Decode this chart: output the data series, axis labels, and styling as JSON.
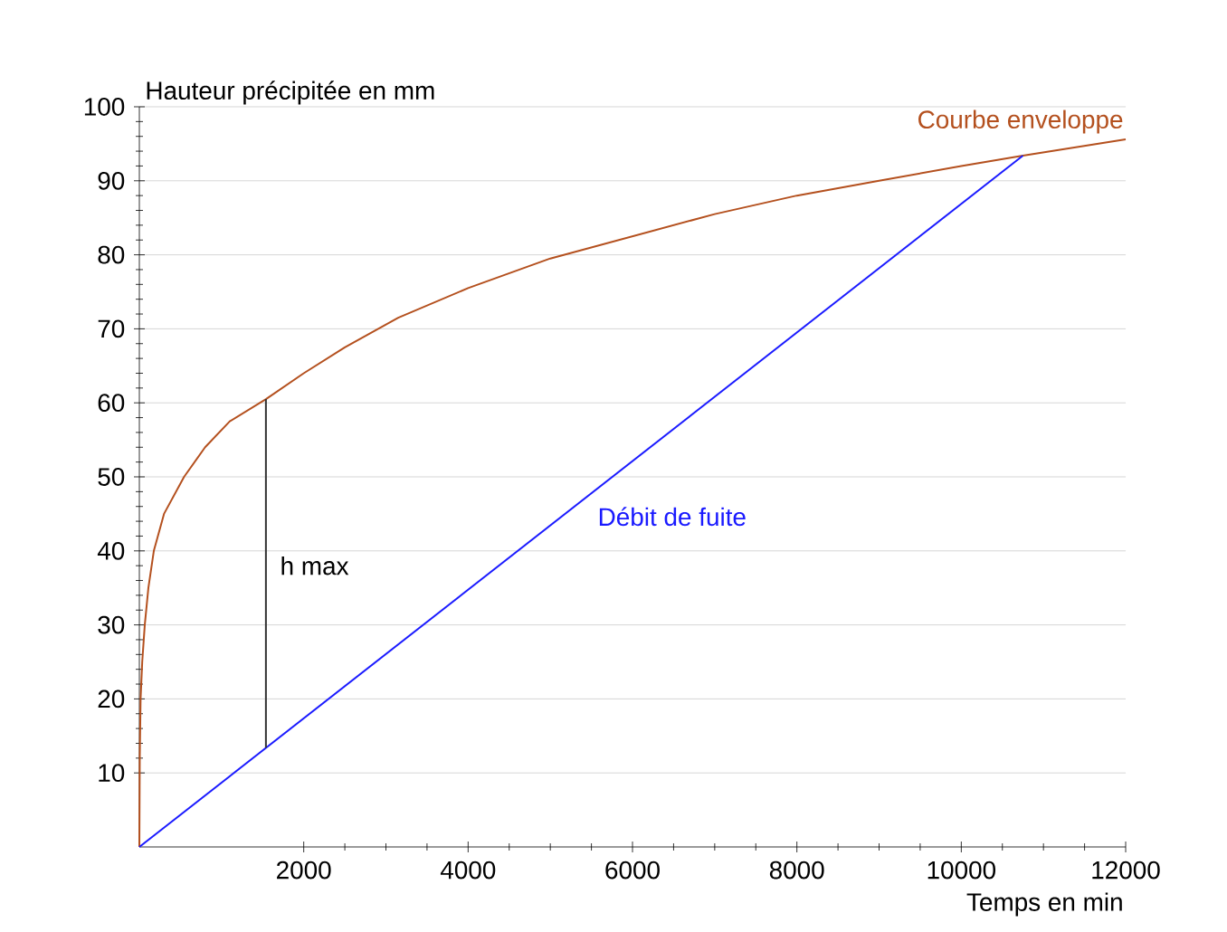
{
  "chart_data": {
    "type": "line",
    "xlabel": "Temps en min",
    "ylabel": "Hauteur précipitée en mm",
    "xlim": [
      0,
      12000
    ],
    "ylim": [
      0,
      100
    ],
    "xticks": [
      2000,
      4000,
      6000,
      8000,
      10000,
      12000
    ],
    "yticks": [
      10,
      20,
      30,
      40,
      50,
      60,
      70,
      80,
      90,
      100
    ],
    "grid": "y",
    "series": [
      {
        "name": "Courbe enveloppe",
        "color": "#b4501e",
        "x": [
          0,
          5,
          15,
          35,
          66,
          110,
          176,
          300,
          544,
          800,
          1100,
          1540,
          2000,
          2500,
          3150,
          4000,
          5000,
          6000,
          7000,
          8000,
          9000,
          10000,
          10750,
          12000
        ],
        "values": [
          0,
          12,
          20,
          25,
          30,
          35,
          40,
          45,
          50,
          54,
          57.5,
          60.5,
          64,
          67.5,
          71.5,
          75.5,
          79.5,
          82.5,
          85.5,
          88,
          90,
          92,
          93.4,
          95.6
        ]
      },
      {
        "name": "Débit de fuite",
        "color": "#1a1aff",
        "x": [
          0,
          10750
        ],
        "values": [
          0,
          93.4
        ]
      },
      {
        "color": "#333333",
        "x": [
          1540,
          1540
        ],
        "values": [
          13.4,
          60.5
        ]
      }
    ],
    "annotations": [
      {
        "text": "h max",
        "x": 1540,
        "y": 38
      }
    ]
  }
}
